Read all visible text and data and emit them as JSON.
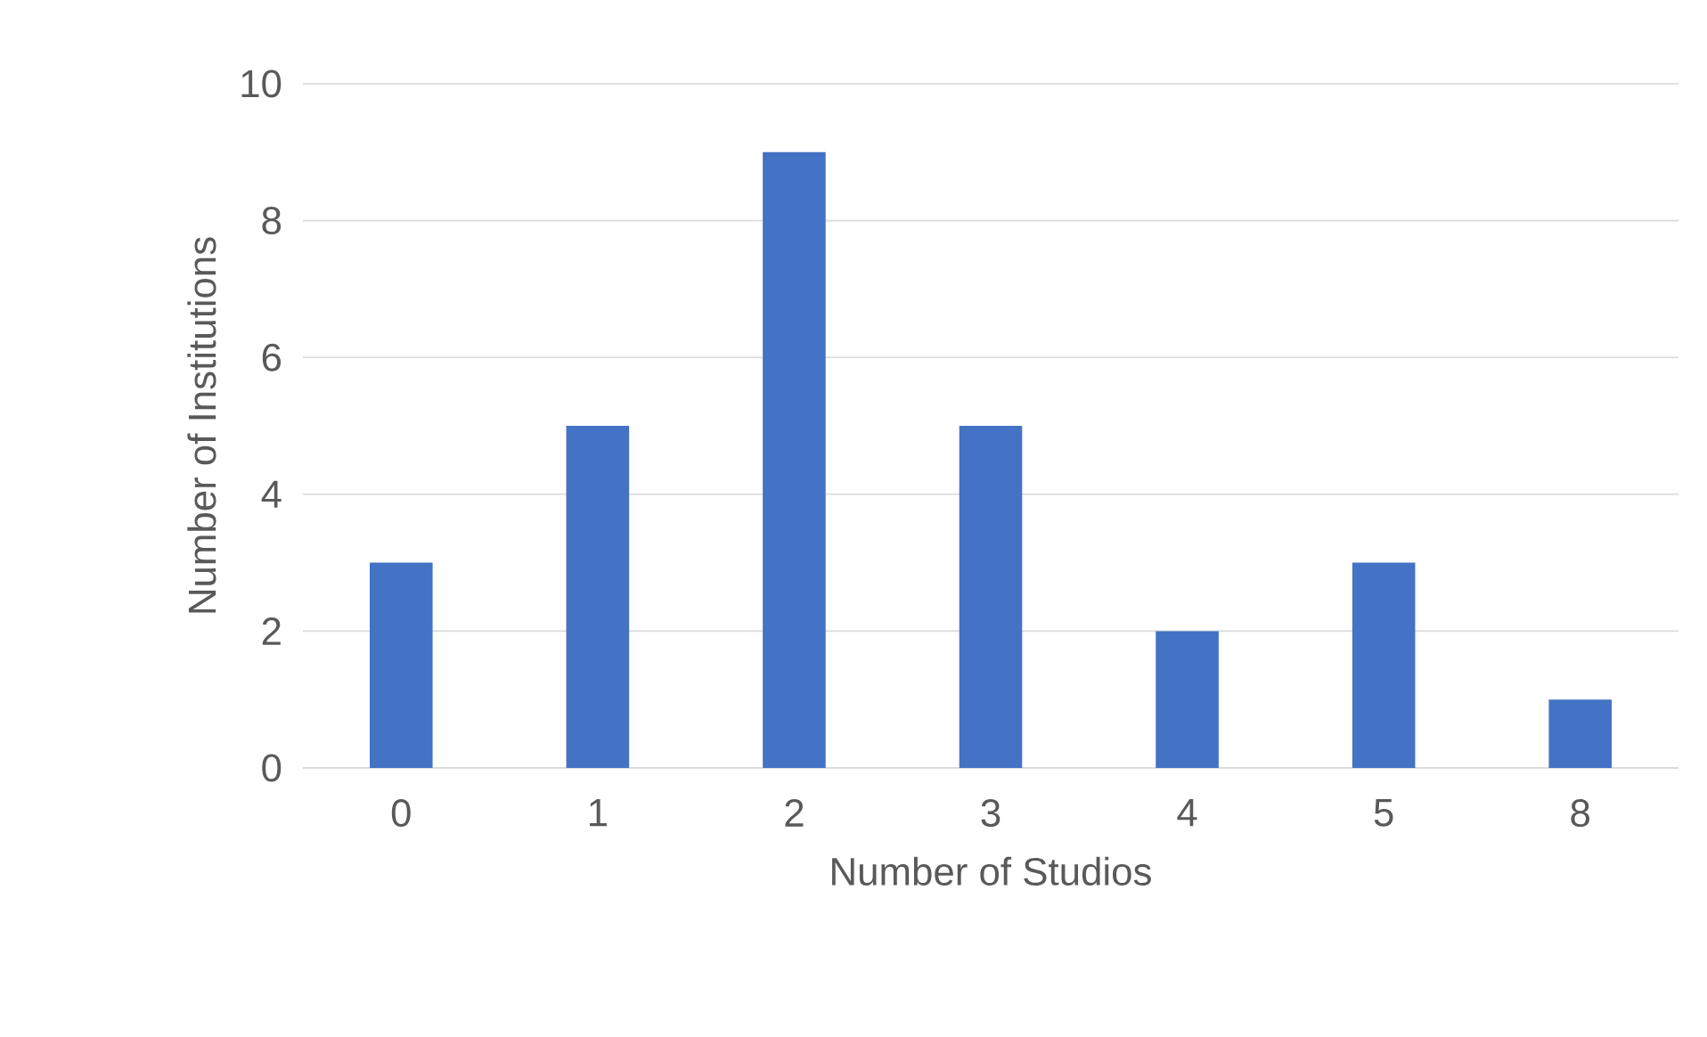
{
  "chart_data": {
    "type": "bar",
    "xlabel": "Number of Studios",
    "ylabel": "Number of Institutions",
    "categories": [
      "0",
      "1",
      "2",
      "3",
      "4",
      "5",
      "8"
    ],
    "values": [
      3,
      5,
      9,
      5,
      2,
      3,
      1
    ],
    "color": "#4472c4",
    "ylim": [
      0,
      10
    ],
    "yticks": [
      0,
      2,
      4,
      6,
      8,
      10
    ],
    "grid": "y"
  }
}
